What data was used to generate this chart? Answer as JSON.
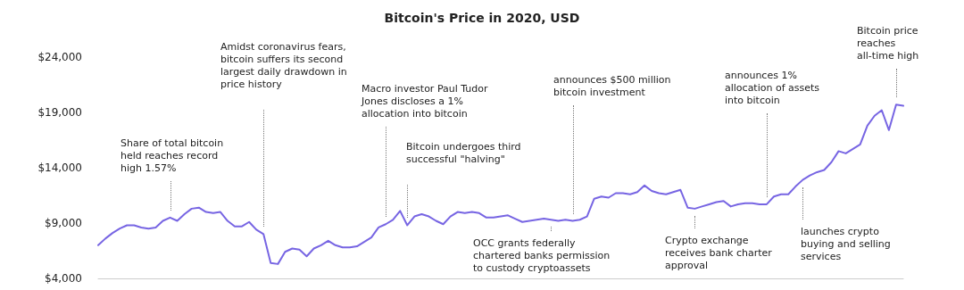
{
  "chart_data": {
    "type": "line",
    "title": "Bitcoin's Price in 2020, USD",
    "categories": [
      null,
      null,
      null,
      null,
      null,
      null,
      null,
      null,
      null,
      null,
      null,
      null,
      null,
      null,
      null,
      null,
      null,
      null,
      null,
      null,
      null,
      null,
      null,
      null,
      null,
      null,
      null,
      null,
      null,
      null,
      null,
      null,
      null,
      null,
      null,
      null,
      null,
      null,
      null,
      null,
      null,
      null,
      null,
      null,
      null,
      null,
      null,
      null,
      null,
      null,
      null,
      null,
      null,
      null,
      null,
      null,
      null,
      null,
      null,
      null,
      null,
      null,
      null,
      null,
      null,
      null,
      null,
      null,
      null,
      null,
      null,
      null,
      null,
      null,
      null,
      null,
      null,
      null,
      null,
      null,
      null,
      null,
      null,
      null,
      null,
      null,
      null,
      null,
      null,
      null,
      null,
      null,
      null,
      null,
      null,
      null,
      null,
      null,
      null,
      null,
      null,
      null,
      null,
      null,
      null,
      null,
      null,
      null,
      null,
      null,
      null,
      null,
      null
    ],
    "series": [
      {
        "color": "#7765e3",
        "values": [
          7000,
          7600,
          8100,
          8500,
          8800,
          8800,
          8600,
          8500,
          8600,
          9200,
          9500,
          9200,
          9800,
          10300,
          10400,
          10000,
          9900,
          10000,
          9200,
          8700,
          8700,
          9100,
          8400,
          8000,
          5400,
          5300,
          6400,
          6700,
          6600,
          6000,
          6700,
          7000,
          7400,
          7000,
          6800,
          6800,
          6900,
          7300,
          7700,
          8600,
          8900,
          9300,
          10100,
          8800,
          9600,
          9800,
          9600,
          9200,
          8900,
          9600,
          10000,
          9900,
          10000,
          9900,
          9500,
          9500,
          9600,
          9700,
          9400,
          9100,
          9200,
          9300,
          9400,
          9300,
          9200,
          9300,
          9200,
          9300,
          9600,
          11200,
          11400,
          11300,
          11700,
          11700,
          11600,
          11800,
          12400,
          11900,
          11700,
          11600,
          11800,
          12000,
          10400,
          10300,
          10500,
          10700,
          10900,
          11000,
          10500,
          10700,
          10800,
          10800,
          10700,
          10700,
          11400,
          11600,
          11600,
          12300,
          12900,
          13300,
          13600,
          13800,
          14500,
          15500,
          15300,
          15700,
          16100,
          17800,
          18700,
          19200,
          17400,
          19700,
          19600
        ]
      }
    ],
    "ylim": [
      4000,
      24000
    ],
    "yticks": [
      {
        "value": 4000,
        "label": "$4,000"
      },
      {
        "value": 9000,
        "label": "$9,000"
      },
      {
        "value": 14000,
        "label": "$14,000"
      },
      {
        "value": 19000,
        "label": "$19,000"
      },
      {
        "value": 24000,
        "label": "$24,000"
      }
    ],
    "tick_labels": "y",
    "grid": false,
    "line_style": "solid",
    "annotations": [
      "Share of total bitcoin held reaches record high 1.57%",
      "Amidst coronavirus fears, bitcoin suffers its second largest daily drawdown in price history",
      "Macro investor Paul Tudor Jones discloses a 1% allocation into bitcoin",
      "Bitcoin undergoes third successful \"halving\"",
      "announces $500 million bitcoin investment",
      "OCC grants federally chartered banks permission to custody cryptoassets",
      "Crypto exchange receives bank charter approval",
      "announces 1% allocation of assets into bitcoin",
      "launches crypto buying and selling services",
      "Bitcoin price reaches all-time high"
    ]
  }
}
